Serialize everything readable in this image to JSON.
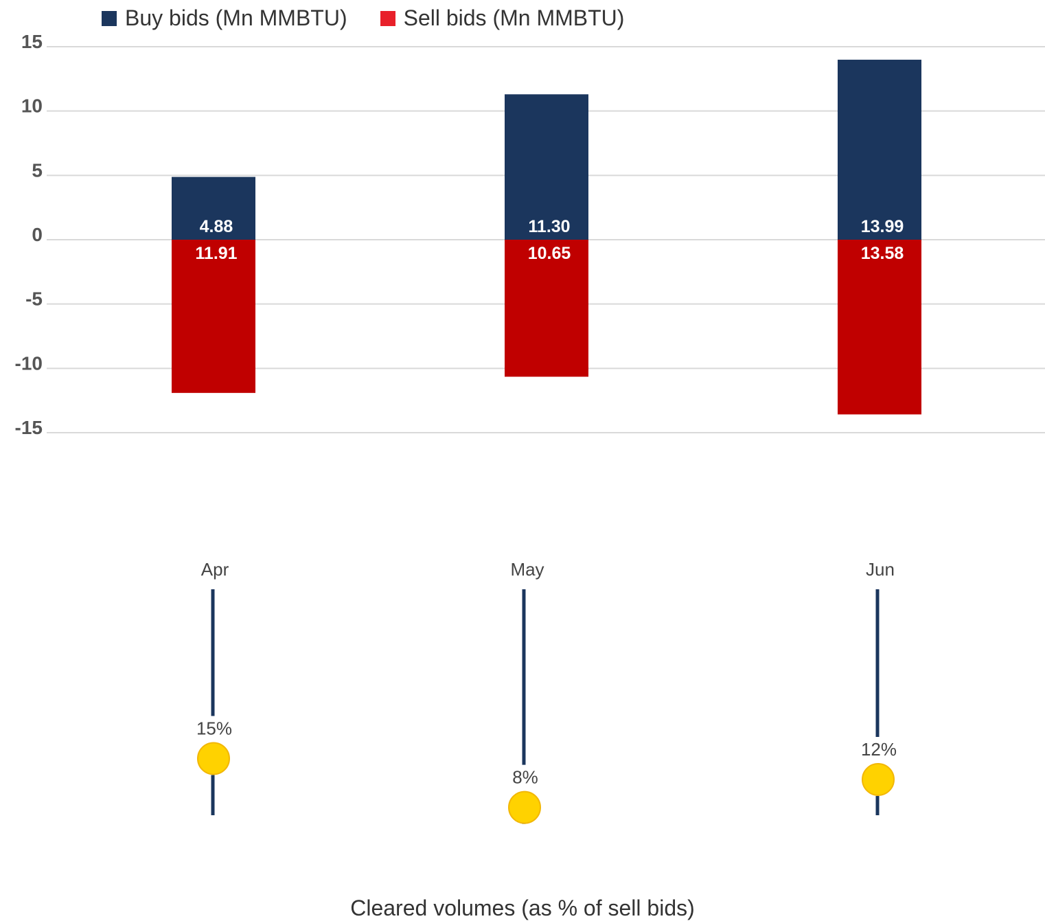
{
  "chart_data": {
    "type": "bar",
    "categories": [
      "Apr",
      "May",
      "Jun"
    ],
    "series": [
      {
        "name": "Buy bids (Mn MMBTU)",
        "values": [
          4.88,
          11.3,
          13.99
        ],
        "labels": [
          "4.88",
          "11.30",
          "13.99"
        ],
        "color": "#1b365d"
      },
      {
        "name": "Sell bids (Mn MMBTU)",
        "values": [
          -11.91,
          -10.65,
          -13.58
        ],
        "labels": [
          "11.91",
          "10.65",
          "13.58"
        ],
        "color": "#c00000",
        "legend_color": "#e8202a"
      }
    ],
    "ylim": [
      -15,
      15
    ],
    "yticks": [
      "15",
      "10",
      "5",
      "0",
      "-5",
      "-10",
      "-15"
    ],
    "grid": true,
    "legend": "top-left",
    "cleared": {
      "title": "Cleared volumes (as % of sell bids)",
      "values": [
        15,
        8,
        12
      ],
      "labels": [
        "15%",
        "8%",
        "12%"
      ],
      "line_color": "#1b365d",
      "dot_color": "#ffd200"
    }
  }
}
